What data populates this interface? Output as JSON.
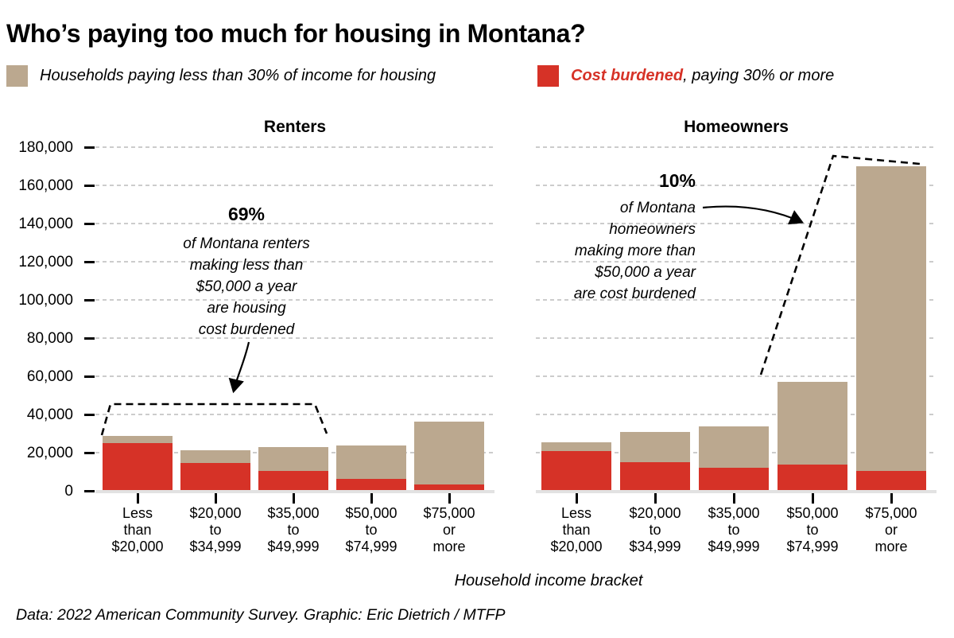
{
  "title": "Who’s paying too much for housing in Montana?",
  "legend": {
    "not_burdened": {
      "label": "Households paying less than 30% of income for housing",
      "color": "#bba88f"
    },
    "burdened": {
      "emph": "Cost burdened",
      "rest": ", paying 30% or more",
      "color": "#d63227"
    }
  },
  "annotations": {
    "renters": {
      "value": "69%",
      "lines": [
        "of Montana renters",
        "making less than",
        "$50,000 a year",
        "are housing",
        "cost burdened"
      ]
    },
    "homeowners": {
      "value": "10%",
      "lines": [
        "of Montana",
        "homeowners",
        "making more than",
        "$50,000 a year",
        "are cost burdened"
      ]
    }
  },
  "x_axis_label": "Household income bracket",
  "footer": "Data: 2022 American Community Survey. Graphic: Eric Dietrich / MTFP",
  "colors": {
    "burdened": "#d63227",
    "not_burdened": "#bba88f",
    "gridline": "#cccccc",
    "axis_line": "#e2e2e2"
  },
  "y_tick_labels": [
    "0",
    "20,000",
    "40,000",
    "60,000",
    "80,000",
    "100,000",
    "120,000",
    "140,000",
    "160,000",
    "180,000"
  ],
  "chart_data": [
    {
      "type": "bar",
      "stacked": true,
      "title": "Renters",
      "categories": [
        "Less\nthan\n$20,000",
        "$20,000\nto\n$34,999",
        "$35,000\nto\n$49,999",
        "$50,000\nto\n$74,999",
        "$75,000\nor\nmore"
      ],
      "series": [
        {
          "name": "Cost burdened, paying 30% or more",
          "color": "#d63227",
          "values": [
            25100,
            14500,
            10300,
            6100,
            3400
          ]
        },
        {
          "name": "Households paying less than 30% of income for housing",
          "color": "#bba88f",
          "values": [
            3800,
            6600,
            12700,
            17800,
            32700
          ]
        }
      ],
      "totals": [
        28900,
        21100,
        23000,
        23900,
        36100
      ],
      "xlabel": "Household income bracket",
      "ylabel": "",
      "ylim": [
        0,
        180000
      ],
      "y_ticks": [
        0,
        20000,
        40000,
        60000,
        80000,
        100000,
        120000,
        140000,
        160000,
        180000
      ],
      "grid": true,
      "legend_position": "top"
    },
    {
      "type": "bar",
      "stacked": true,
      "title": "Homeowners",
      "categories": [
        "Less\nthan\n$20,000",
        "$20,000\nto\n$34,999",
        "$35,000\nto\n$49,999",
        "$50,000\nto\n$74,999",
        "$75,000\nor\nmore"
      ],
      "series": [
        {
          "name": "Cost burdened, paying 30% or more",
          "color": "#d63227",
          "values": [
            20700,
            15100,
            12200,
            13900,
            10300
          ]
        },
        {
          "name": "Households paying less than 30% of income for housing",
          "color": "#bba88f",
          "values": [
            4700,
            15900,
            21700,
            43300,
            159700
          ]
        }
      ],
      "totals": [
        25400,
        31000,
        33900,
        57200,
        170000
      ],
      "xlabel": "Household income bracket",
      "ylabel": "",
      "ylim": [
        0,
        180000
      ],
      "y_ticks": [
        0,
        20000,
        40000,
        60000,
        80000,
        100000,
        120000,
        140000,
        160000,
        180000
      ],
      "grid": true,
      "legend_position": "top"
    }
  ]
}
